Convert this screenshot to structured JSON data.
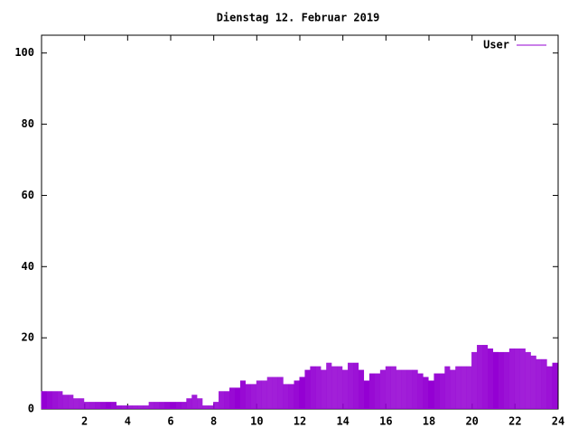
{
  "chart_data": {
    "type": "impulse",
    "title": "Dienstag 12. Februar 2019",
    "x": [
      0,
      0.25,
      0.5,
      0.75,
      1,
      1.25,
      1.5,
      1.75,
      2,
      2.25,
      2.5,
      2.75,
      3,
      3.25,
      3.5,
      3.75,
      4,
      4.25,
      4.5,
      4.75,
      5,
      5.25,
      5.5,
      5.75,
      6,
      6.25,
      6.5,
      6.75,
      7,
      7.25,
      7.5,
      7.75,
      8,
      8.25,
      8.5,
      8.75,
      9,
      9.25,
      9.5,
      9.75,
      10,
      10.25,
      10.5,
      10.75,
      11,
      11.25,
      11.5,
      11.75,
      12,
      12.25,
      12.5,
      12.75,
      13,
      13.25,
      13.5,
      13.75,
      14,
      14.25,
      14.5,
      14.75,
      15,
      15.25,
      15.5,
      15.75,
      16,
      16.25,
      16.5,
      16.75,
      17,
      17.25,
      17.5,
      17.75,
      18,
      18.25,
      18.5,
      18.75,
      19,
      19.25,
      19.5,
      19.75,
      20,
      20.25,
      20.5,
      20.75,
      21,
      21.25,
      21.5,
      21.75,
      22,
      22.25,
      22.5,
      22.75,
      23,
      23.25,
      23.5,
      23.75
    ],
    "series": [
      {
        "name": "User",
        "color": "#9400d3",
        "values": [
          5,
          5,
          5,
          5,
          4,
          4,
          3,
          3,
          2,
          2,
          2,
          2,
          2,
          2,
          1,
          1,
          1,
          1,
          1,
          1,
          2,
          2,
          2,
          2,
          2,
          2,
          2,
          3,
          4,
          3,
          1,
          1,
          2,
          5,
          5,
          6,
          6,
          8,
          7,
          7,
          8,
          8,
          9,
          9,
          9,
          7,
          7,
          8,
          9,
          11,
          12,
          12,
          11,
          13,
          12,
          12,
          11,
          13,
          13,
          11,
          8,
          10,
          10,
          11,
          12,
          12,
          11,
          11,
          11,
          11,
          10,
          9,
          8,
          10,
          10,
          12,
          11,
          12,
          12,
          12,
          16,
          18,
          18,
          17,
          16,
          16,
          16,
          17,
          17,
          17,
          16,
          15,
          14,
          14,
          12,
          13
        ]
      }
    ],
    "xlim": [
      0,
      24
    ],
    "xticks": [
      2,
      4,
      6,
      8,
      10,
      12,
      14,
      16,
      18,
      20,
      22,
      24
    ],
    "ylim": [
      0,
      105
    ],
    "yticks": [
      0,
      20,
      40,
      60,
      80,
      100
    ],
    "legend": "upper right"
  }
}
